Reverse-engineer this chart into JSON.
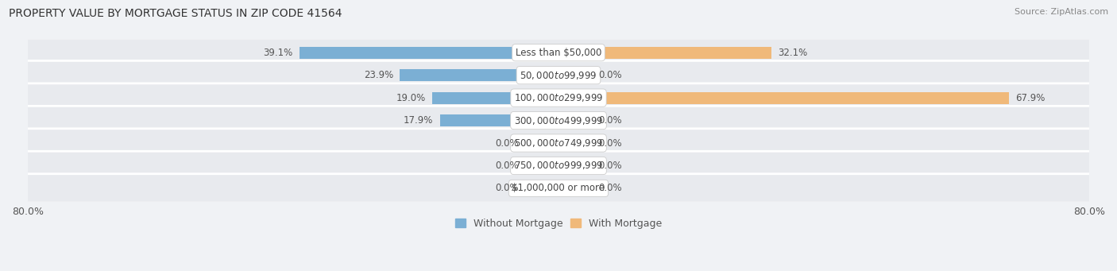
{
  "title": "PROPERTY VALUE BY MORTGAGE STATUS IN ZIP CODE 41564",
  "source": "Source: ZipAtlas.com",
  "categories": [
    "Less than $50,000",
    "$50,000 to $99,999",
    "$100,000 to $299,999",
    "$300,000 to $499,999",
    "$500,000 to $749,999",
    "$750,000 to $999,999",
    "$1,000,000 or more"
  ],
  "without_mortgage": [
    39.1,
    23.9,
    19.0,
    17.9,
    0.0,
    0.0,
    0.0
  ],
  "with_mortgage": [
    32.1,
    0.0,
    67.9,
    0.0,
    0.0,
    0.0,
    0.0
  ],
  "xlim": 80.0,
  "bar_color_left": "#7bafd4",
  "bar_color_right": "#f0b97a",
  "bar_color_left_faint": "#b8d4e8",
  "bar_color_right_faint": "#f7d9b8",
  "bg_row_color": "#e8eaee",
  "fig_bg_color": "#f0f2f5",
  "title_fontsize": 10,
  "source_fontsize": 8,
  "tick_fontsize": 9,
  "bar_label_fontsize": 8.5,
  "category_fontsize": 8.5,
  "legend_label_left": "Without Mortgage",
  "legend_label_right": "With Mortgage",
  "axis_label_left": "80.0%",
  "axis_label_right": "80.0%",
  "stub_size": 5.0
}
